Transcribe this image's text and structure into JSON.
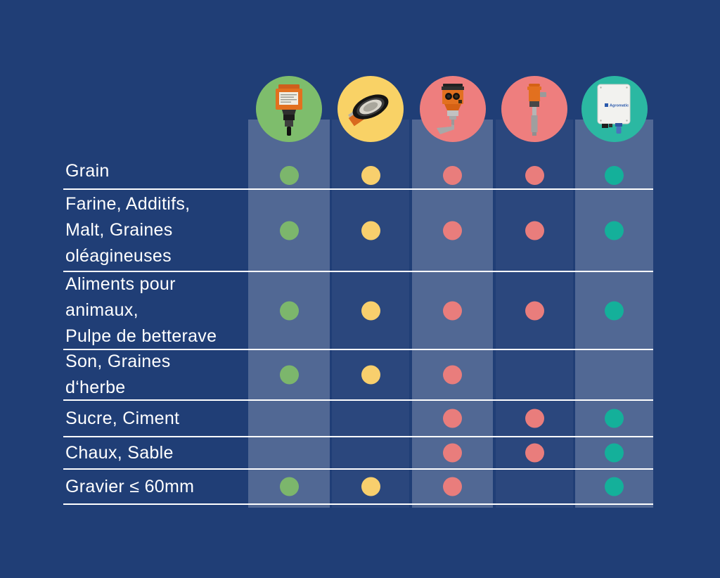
{
  "page": {
    "background": "#203e76",
    "line_color": "#ffffff",
    "text_color": "#ffffff",
    "band_light": "rgba(255,255,255,0.22)",
    "band_dark": "rgba(255,255,255,0.05)"
  },
  "chart_data": {
    "type": "table",
    "title": "",
    "columns": [
      {
        "name": "compact-rotary-paddle-sensor",
        "circle_color": "#7ebd6c",
        "dot_color": "#7cb66c"
      },
      {
        "name": "membrane-level-sensor",
        "circle_color": "#f9d266",
        "dot_color": "#f8cf6d"
      },
      {
        "name": "rotary-paddle-blade-sensor",
        "circle_color": "#ee7e7e",
        "dot_color": "#e97d7c"
      },
      {
        "name": "vibrating-rod-sensor",
        "circle_color": "#ee7e7e",
        "dot_color": "#e97d7c"
      },
      {
        "name": "capacitive-box-sensor",
        "circle_color": "#2bb8a2",
        "dot_color": "#14b09a",
        "brand": "Agromatic"
      }
    ],
    "row_labels": [
      "Grain",
      "Farine, Additifs,\nMalt, Graines\noléagineuses",
      "Aliments pour\nanimaux,\nPulpe de betterave",
      "Son, Graines\nd‘herbe",
      "Sucre, Ciment",
      "Chaux, Sable",
      "Gravier ≤ 60mm"
    ],
    "matrix": [
      [
        1,
        1,
        1,
        1,
        1
      ],
      [
        1,
        1,
        1,
        1,
        1
      ],
      [
        1,
        1,
        1,
        1,
        1
      ],
      [
        1,
        1,
        1,
        0,
        0
      ],
      [
        0,
        0,
        1,
        1,
        1
      ],
      [
        0,
        0,
        1,
        1,
        1
      ],
      [
        1,
        1,
        1,
        0,
        1
      ]
    ]
  }
}
